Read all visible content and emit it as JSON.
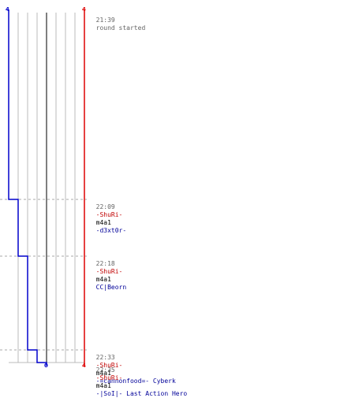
{
  "header": {
    "time": "21:39",
    "text": "round started"
  },
  "scores": {
    "blue_start": "4",
    "red_start": "4",
    "red_end": "4",
    "blue_end": "0"
  },
  "colors": {
    "blue": "#0000cc",
    "red": "#dd0000",
    "grid": "#bbbbbb",
    "dash": "#aaaaaa",
    "axis": "#555555"
  },
  "events": [
    {
      "time": "22:09",
      "killer": "-ShuRi-",
      "weapon": "m4a1",
      "victim": "-d3xt0r-",
      "blue_after": 3
    },
    {
      "time": "22:18",
      "killer": "-ShuRi-",
      "weapon": "m4a1",
      "victim": "CC|Beorn",
      "blue_after": 2
    },
    {
      "time": "22:33",
      "killer": "-ShuRi-",
      "weapon": "m4a1",
      "victim": "-=cannonfood=- Cyberk",
      "blue_after": 1
    },
    {
      "time": "22:35",
      "killer": "-ShuRi-",
      "weapon": "m4a1",
      "victim": "-|SoI|- Last Action Hero",
      "blue_after": 0
    }
  ]
}
